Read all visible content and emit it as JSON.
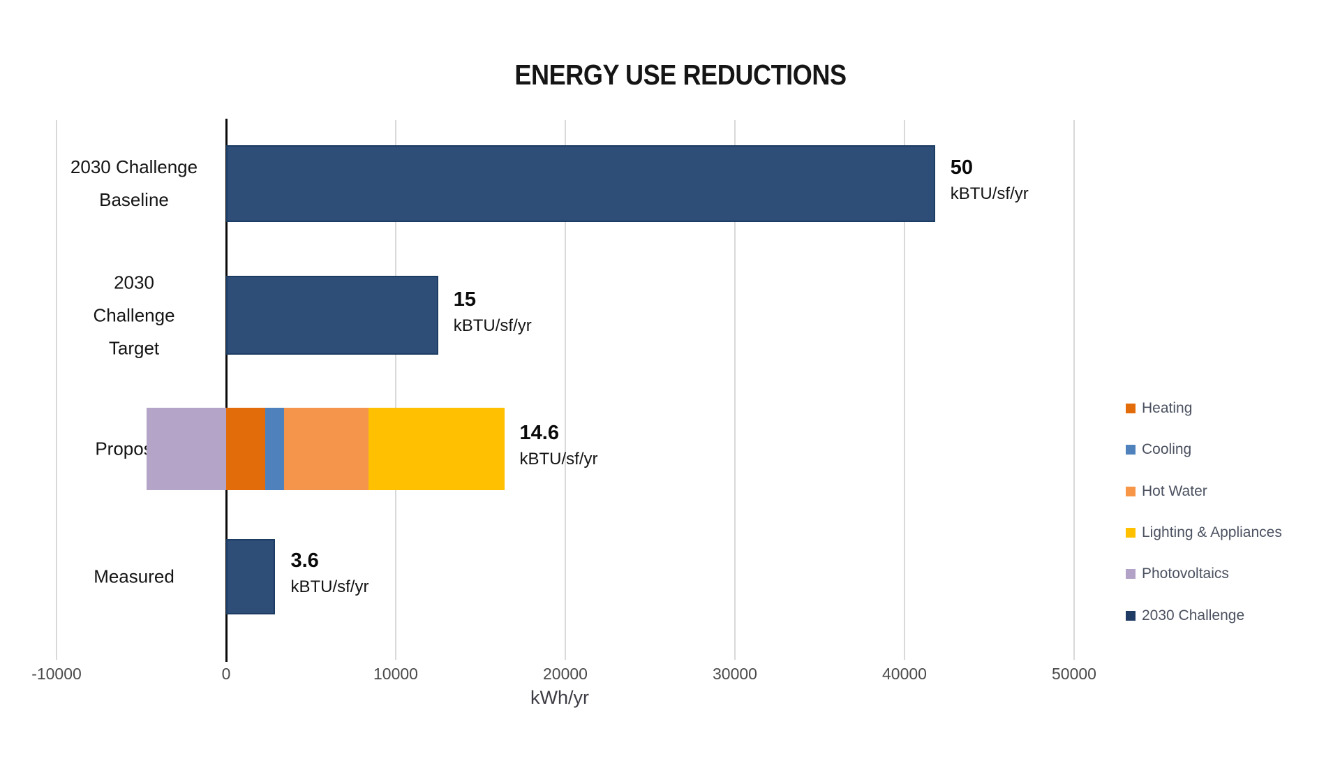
{
  "title": "ENERGY USE REDUCTIONS",
  "chart_data": {
    "type": "bar",
    "orientation": "horizontal",
    "title": "ENERGY USE REDUCTIONS",
    "xlabel": "kWh/yr",
    "xlim": [
      -10000,
      50000
    ],
    "x_ticks": [
      -10000,
      0,
      10000,
      20000,
      30000,
      40000,
      50000
    ],
    "grid": "vertical-light-gray",
    "legend_position": "right",
    "categories": [
      "2030 Challenge Baseline",
      "2030 Challenge Target",
      "Proposed",
      "Measured"
    ],
    "rows": [
      {
        "label": "2030 Challenge Baseline",
        "label_lines": [
          "2030 Challenge",
          "Baseline"
        ],
        "series": "2030 Challenge",
        "value_kwh": 41800,
        "annotation_value": "50",
        "annotation_unit": "kBTU/sf/yr"
      },
      {
        "label": "2030 Challenge Target",
        "label_lines": [
          "2030",
          "Challenge",
          "Target"
        ],
        "series": "2030 Challenge",
        "value_kwh": 12500,
        "annotation_value": "15",
        "annotation_unit": "kBTU/sf/yr"
      },
      {
        "label": "Proposed",
        "label_lines": [
          "Proposed"
        ],
        "stacked": true,
        "segments": [
          {
            "name": "Photovoltaics",
            "value_kwh": -4700
          },
          {
            "name": "Heating",
            "value_kwh": 2300
          },
          {
            "name": "Cooling",
            "value_kwh": 1100
          },
          {
            "name": "Hot Water",
            "value_kwh": 5000
          },
          {
            "name": "Lighting & Appliances",
            "value_kwh": 8000
          }
        ],
        "annotation_value": "14.6",
        "annotation_unit": "kBTU/sf/yr"
      },
      {
        "label": "Measured",
        "label_lines": [
          "Measured"
        ],
        "series": "2030 Challenge",
        "value_kwh": 2900,
        "annotation_value": "3.6",
        "annotation_unit": "kBTU/sf/yr"
      }
    ],
    "legend": [
      {
        "label": "Heating",
        "color": "#e36c0a"
      },
      {
        "label": "Cooling",
        "color": "#4f81bd"
      },
      {
        "label": "Hot Water",
        "color": "#f79646"
      },
      {
        "label": "Lighting & Appliances",
        "color": "#ffc000"
      },
      {
        "label": "Photovoltaics",
        "color": "#b2a2c7"
      },
      {
        "label": "2030 Challenge",
        "color": "#1f3b63"
      }
    ],
    "colors": {
      "bar_navy_fill": "#2e4e78",
      "bar_navy_border": "#1c3c64",
      "heating": "#e36c0a",
      "cooling": "#4f81bd",
      "hot_water": "#f5954b",
      "lighting_appliances": "#fec000",
      "photovoltaics": "#b3a4c8",
      "gridline": "#d9d9d9",
      "axis_line": "#0a0a0a",
      "background": "#ffffff"
    }
  }
}
